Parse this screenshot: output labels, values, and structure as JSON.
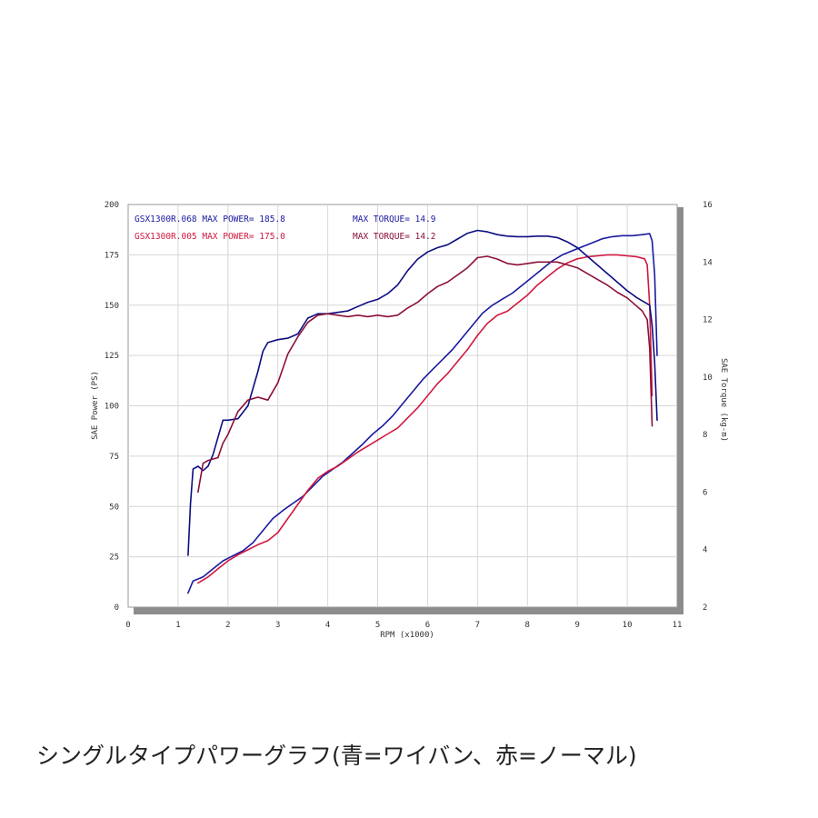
{
  "caption": "シングルタイプパワーグラフ(青=ワイバン、赤=ノーマル)",
  "chart_data": {
    "type": "line",
    "xlabel": "RPM (x1000)",
    "ylabel_left": "SAE Power (PS)",
    "ylabel_right": "SAE Torque (kg-m)",
    "xlim": [
      0,
      11
    ],
    "ylim_left": [
      0,
      200
    ],
    "ylim_right": [
      2,
      16
    ],
    "x_ticks": [
      "0",
      "1",
      "2",
      "3",
      "4",
      "5",
      "6",
      "7",
      "8",
      "9",
      "10",
      "11"
    ],
    "y_left_ticks": [
      "0",
      "25",
      "50",
      "75",
      "100",
      "125",
      "150",
      "175",
      "200"
    ],
    "y_right_ticks": [
      "2",
      "4",
      "6",
      "8",
      "10",
      "12",
      "14",
      "16"
    ],
    "grid": true,
    "colors": {
      "blue": "#1a1aa0",
      "blue_dark": "#0d0d80",
      "red": "#d01840",
      "red_dark": "#8a1038"
    },
    "annotations": [
      {
        "text": "GSX1300R.068  MAX POWER= 185.8",
        "color": "#1a1aa0"
      },
      {
        "text": "MAX TORQUE= 14.9",
        "color": "#1a1aa0"
      },
      {
        "text": "GSX1300R.005  MAX POWER= 175.0",
        "color": "#d01840"
      },
      {
        "text": "MAX TORQUE= 14.2",
        "color": "#8a1038"
      }
    ],
    "series": [
      {
        "role": "power",
        "axis": "left",
        "color": "#1a1aa0",
        "x": [
          1.2,
          1.3,
          1.5,
          1.7,
          1.9,
          2.1,
          2.3,
          2.5,
          2.7,
          2.9,
          3.1,
          3.3,
          3.5,
          3.7,
          3.9,
          4.1,
          4.3,
          4.5,
          4.7,
          4.9,
          5.1,
          5.3,
          5.5,
          5.7,
          5.9,
          6.1,
          6.3,
          6.5,
          6.7,
          6.9,
          7.1,
          7.3,
          7.5,
          7.7,
          7.9,
          8.1,
          8.3,
          8.5,
          8.7,
          8.9,
          9.1,
          9.3,
          9.5,
          9.7,
          9.9,
          10.1,
          10.3,
          10.45,
          10.5,
          10.55,
          10.6
        ],
        "y": [
          7,
          13,
          15,
          19,
          23,
          25.5,
          28,
          32,
          38,
          44,
          48,
          51.5,
          55,
          60,
          65,
          68.5,
          72,
          76.5,
          81,
          86,
          90,
          95,
          101,
          107,
          113,
          118,
          123,
          128,
          134,
          140,
          146,
          150,
          153,
          156,
          160,
          164,
          168,
          172,
          175,
          177,
          179,
          181,
          183,
          184,
          184.5,
          184.5,
          185,
          185.5,
          182,
          165,
          125
        ]
      },
      {
        "role": "power",
        "axis": "left",
        "color": "#d01840",
        "x": [
          1.4,
          1.6,
          1.8,
          2.0,
          2.2,
          2.4,
          2.6,
          2.8,
          3.0,
          3.2,
          3.4,
          3.6,
          3.8,
          4.0,
          4.2,
          4.4,
          4.6,
          4.8,
          5.0,
          5.2,
          5.4,
          5.6,
          5.8,
          6.0,
          6.2,
          6.4,
          6.6,
          6.8,
          7.0,
          7.2,
          7.4,
          7.6,
          7.8,
          8.0,
          8.2,
          8.4,
          8.6,
          8.8,
          9.0,
          9.2,
          9.4,
          9.6,
          9.8,
          10.0,
          10.2,
          10.35,
          10.4,
          10.45,
          10.5
        ],
        "y": [
          12,
          15,
          19,
          23,
          26,
          28.5,
          31,
          33,
          37,
          44,
          51,
          58,
          64,
          67.5,
          70,
          73.5,
          77,
          80,
          83,
          86,
          89,
          94,
          99,
          105,
          111,
          116,
          122,
          128,
          135,
          141,
          145,
          147,
          151,
          155,
          160,
          164,
          168,
          171,
          173,
          174,
          174.5,
          175,
          175,
          174.5,
          174,
          173,
          170,
          150,
          105
        ]
      },
      {
        "role": "torque",
        "axis": "right",
        "color": "#0d0d80",
        "x": [
          1.2,
          1.25,
          1.3,
          1.4,
          1.5,
          1.6,
          1.7,
          1.8,
          1.9,
          2.0,
          2.2,
          2.4,
          2.6,
          2.7,
          2.8,
          3.0,
          3.2,
          3.4,
          3.6,
          3.8,
          4.0,
          4.2,
          4.4,
          4.6,
          4.8,
          5.0,
          5.2,
          5.4,
          5.6,
          5.8,
          6.0,
          6.2,
          6.4,
          6.6,
          6.8,
          7.0,
          7.2,
          7.4,
          7.6,
          7.8,
          8.0,
          8.2,
          8.4,
          8.6,
          8.8,
          9.0,
          9.2,
          9.4,
          9.6,
          9.8,
          10.0,
          10.2,
          10.4,
          10.45,
          10.5,
          10.55,
          10.6
        ],
        "y": [
          3.8,
          5.6,
          6.8,
          6.9,
          6.75,
          6.9,
          7.3,
          7.9,
          8.5,
          8.5,
          8.55,
          9,
          10.2,
          10.9,
          11.2,
          11.3,
          11.35,
          11.5,
          12.05,
          12.2,
          12.2,
          12.25,
          12.3,
          12.45,
          12.6,
          12.7,
          12.9,
          13.2,
          13.7,
          14.1,
          14.35,
          14.5,
          14.6,
          14.8,
          15.0,
          15.1,
          15.05,
          14.95,
          14.9,
          14.88,
          14.88,
          14.9,
          14.9,
          14.85,
          14.7,
          14.5,
          14.2,
          13.9,
          13.6,
          13.3,
          13.0,
          12.75,
          12.55,
          12.5,
          11.8,
          10.5,
          8.5
        ]
      },
      {
        "role": "torque",
        "axis": "right",
        "color": "#8a1038",
        "x": [
          1.4,
          1.5,
          1.6,
          1.8,
          1.9,
          2.0,
          2.2,
          2.4,
          2.6,
          2.8,
          3.0,
          3.2,
          3.4,
          3.6,
          3.8,
          4.0,
          4.2,
          4.4,
          4.6,
          4.8,
          5.0,
          5.2,
          5.4,
          5.6,
          5.8,
          6.0,
          6.2,
          6.4,
          6.6,
          6.8,
          7.0,
          7.2,
          7.4,
          7.6,
          7.8,
          8.0,
          8.2,
          8.4,
          8.6,
          8.8,
          9.0,
          9.2,
          9.4,
          9.6,
          9.8,
          10.0,
          10.2,
          10.3,
          10.4,
          10.45,
          10.5
        ],
        "y": [
          6.0,
          7.0,
          7.1,
          7.2,
          7.7,
          8.0,
          8.8,
          9.2,
          9.3,
          9.2,
          9.8,
          10.8,
          11.4,
          11.9,
          12.15,
          12.2,
          12.15,
          12.1,
          12.15,
          12.1,
          12.15,
          12.1,
          12.15,
          12.4,
          12.6,
          12.9,
          13.15,
          13.3,
          13.55,
          13.8,
          14.15,
          14.2,
          14.1,
          13.95,
          13.9,
          13.95,
          14.0,
          14.0,
          14.0,
          13.9,
          13.8,
          13.6,
          13.4,
          13.2,
          12.95,
          12.75,
          12.45,
          12.3,
          12.0,
          11.0,
          8.3
        ]
      }
    ]
  }
}
